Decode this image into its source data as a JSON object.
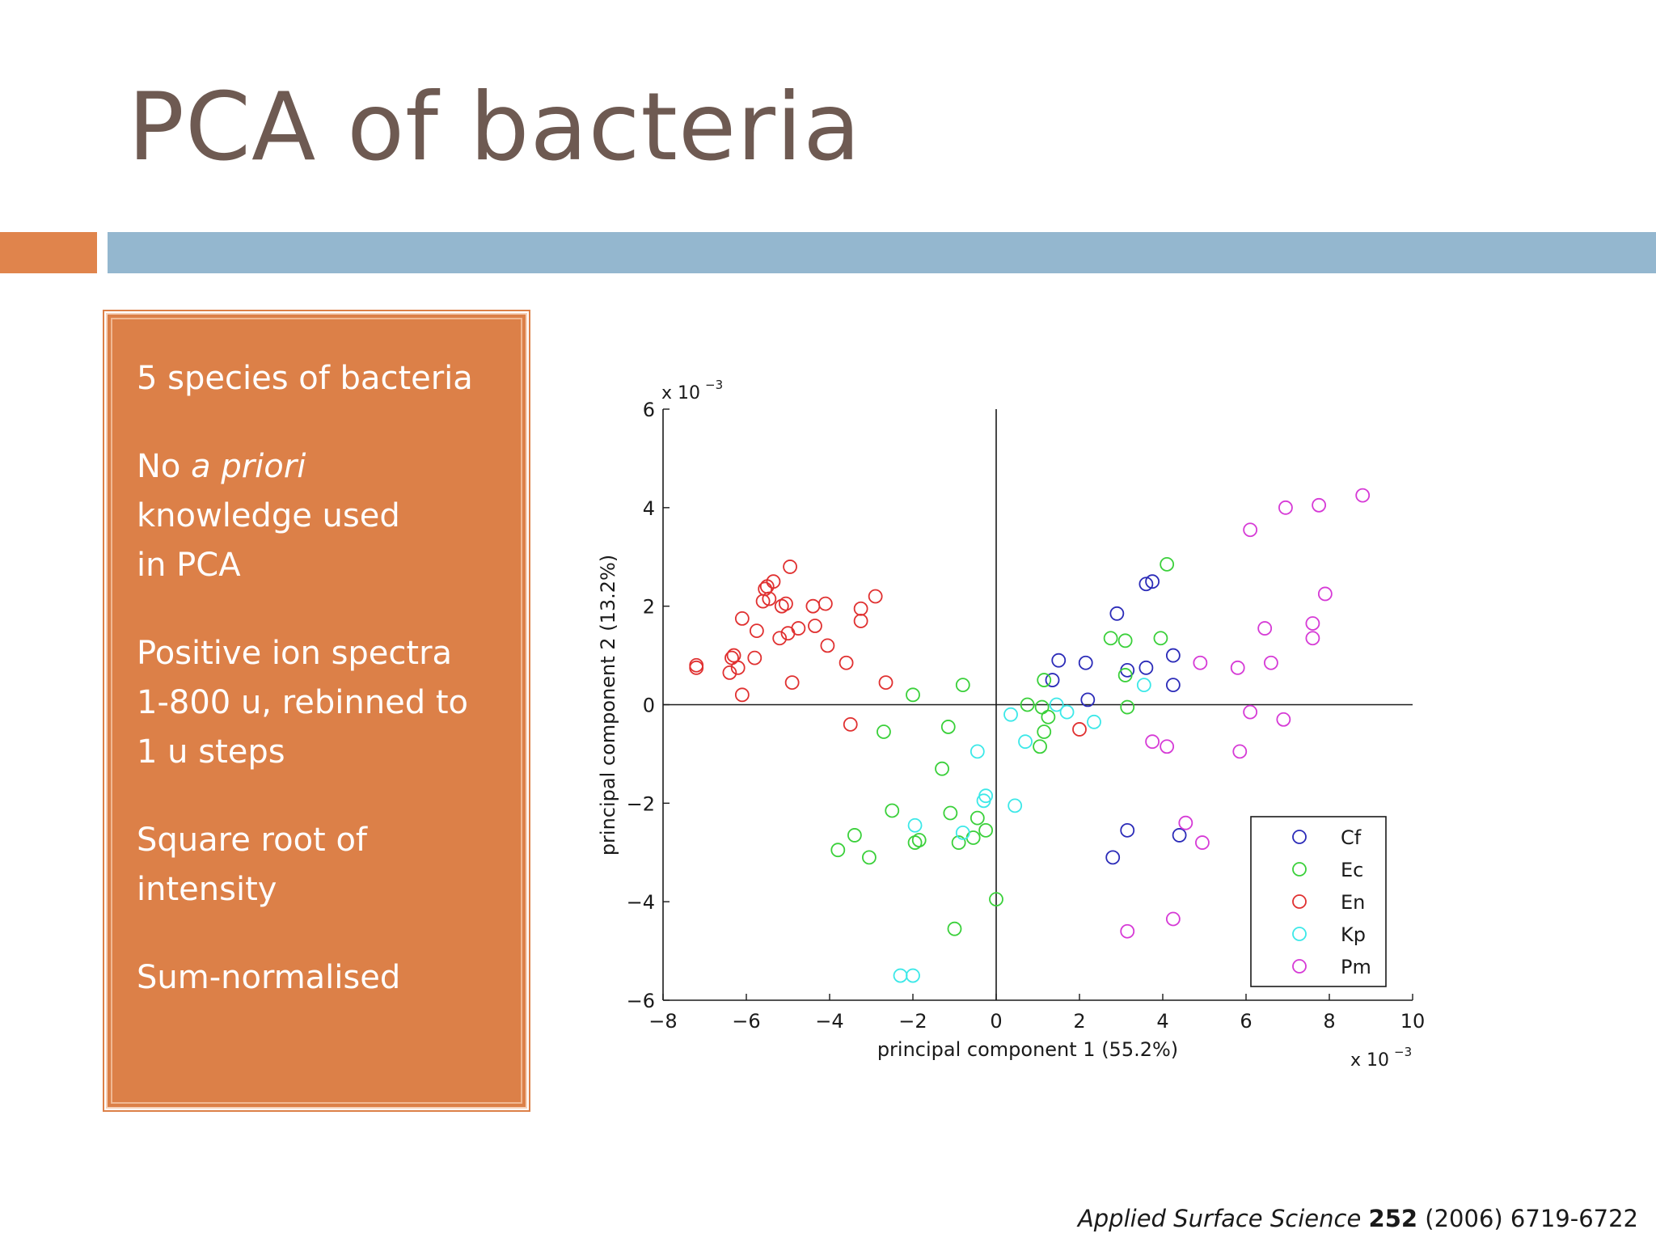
{
  "slide": {
    "title": "PCA of bacteria",
    "bullets": {
      "b1": "5 species of bacteria",
      "b2_pre": "No ",
      "b2_italic": "a priori",
      "b2_l2": "knowledge used",
      "b2_l3": "in PCA",
      "b3_l1": "Positive ion spectra",
      "b3_l2": "1-800 u, rebinned to",
      "b3_l3": "1 u steps",
      "b4_l1": "Square root of",
      "b4_l2": "intensity",
      "b5": "Sum-normalised"
    },
    "citation": {
      "journal": "Applied Surface Science",
      "volume": "252",
      "rest": "(2006) 6719-6722"
    }
  },
  "colors": {
    "orange": "#dc8048",
    "blue_bar": "#94b7cf",
    "title": "#6e5a52"
  },
  "chart_data": {
    "type": "scatter",
    "xlabel": "principal component 1 (55.2%)",
    "ylabel": "principal component 2 (13.2%)",
    "x_multiplier": "x 10",
    "y_multiplier": "x 10",
    "multiplier_exponent": "−3",
    "xlim": [
      -8,
      10
    ],
    "ylim": [
      -6,
      6
    ],
    "xticks": [
      -8,
      -6,
      -4,
      -2,
      0,
      2,
      4,
      6,
      8,
      10
    ],
    "yticks": [
      -6,
      -4,
      -2,
      0,
      2,
      4,
      6
    ],
    "xtick_labels": [
      "−8",
      "−6",
      "−4",
      "−2",
      "0",
      "2",
      "4",
      "6",
      "8",
      "10"
    ],
    "ytick_labels": [
      "−6",
      "−4",
      "−2",
      "0",
      "2",
      "4",
      "6"
    ],
    "grid": false,
    "legend_position": "bottom-right",
    "series": [
      {
        "name": "Cf",
        "color": "#2b2bb8",
        "points": [
          [
            1.5,
            0.9
          ],
          [
            2.15,
            0.85
          ],
          [
            1.35,
            0.5
          ],
          [
            2.2,
            0.1
          ],
          [
            2.9,
            1.85
          ],
          [
            3.6,
            2.45
          ],
          [
            3.75,
            2.5
          ],
          [
            3.15,
            0.7
          ],
          [
            3.6,
            0.75
          ],
          [
            4.25,
            1.0
          ],
          [
            4.25,
            0.4
          ],
          [
            3.15,
            -2.55
          ],
          [
            2.8,
            -3.1
          ],
          [
            4.4,
            -2.65
          ]
        ]
      },
      {
        "name": "Ec",
        "color": "#3ad03a",
        "points": [
          [
            4.1,
            2.85
          ],
          [
            2.75,
            1.35
          ],
          [
            3.1,
            1.3
          ],
          [
            3.95,
            1.35
          ],
          [
            3.1,
            0.6
          ],
          [
            3.15,
            -0.05
          ],
          [
            1.15,
            0.5
          ],
          [
            0.75,
            0.0
          ],
          [
            1.1,
            -0.05
          ],
          [
            1.25,
            -0.25
          ],
          [
            1.15,
            -0.55
          ],
          [
            1.05,
            -0.85
          ],
          [
            -0.8,
            0.4
          ],
          [
            -2.0,
            0.2
          ],
          [
            -1.15,
            -0.45
          ],
          [
            -2.7,
            -0.55
          ],
          [
            -1.3,
            -1.3
          ],
          [
            -2.5,
            -2.15
          ],
          [
            -1.1,
            -2.2
          ],
          [
            -0.45,
            -2.3
          ],
          [
            -3.4,
            -2.65
          ],
          [
            -3.8,
            -2.95
          ],
          [
            -3.05,
            -3.1
          ],
          [
            -1.95,
            -2.8
          ],
          [
            -1.85,
            -2.75
          ],
          [
            -0.9,
            -2.8
          ],
          [
            -0.55,
            -2.7
          ],
          [
            -0.25,
            -2.55
          ],
          [
            0.0,
            -3.95
          ],
          [
            -1.0,
            -4.55
          ]
        ]
      },
      {
        "name": "En",
        "color": "#e03030",
        "points": [
          [
            -4.95,
            2.8
          ],
          [
            -5.35,
            2.5
          ],
          [
            -5.5,
            2.4
          ],
          [
            -5.55,
            2.35
          ],
          [
            -5.6,
            2.1
          ],
          [
            -5.45,
            2.15
          ],
          [
            -5.15,
            2.0
          ],
          [
            -5.05,
            2.05
          ],
          [
            -4.4,
            2.0
          ],
          [
            -4.1,
            2.05
          ],
          [
            -3.25,
            1.95
          ],
          [
            -2.9,
            2.2
          ],
          [
            -3.25,
            1.7
          ],
          [
            -6.1,
            1.75
          ],
          [
            -5.75,
            1.5
          ],
          [
            -5.2,
            1.35
          ],
          [
            -5.0,
            1.45
          ],
          [
            -4.75,
            1.55
          ],
          [
            -4.35,
            1.6
          ],
          [
            -4.05,
            1.2
          ],
          [
            -3.6,
            0.85
          ],
          [
            -6.35,
            0.95
          ],
          [
            -6.3,
            1.0
          ],
          [
            -6.2,
            0.75
          ],
          [
            -6.4,
            0.65
          ],
          [
            -5.8,
            0.95
          ],
          [
            -7.2,
            0.8
          ],
          [
            -7.2,
            0.75
          ],
          [
            -6.1,
            0.2
          ],
          [
            -4.9,
            0.45
          ],
          [
            -2.65,
            0.45
          ],
          [
            -3.5,
            -0.4
          ],
          [
            2.0,
            -0.5
          ]
        ]
      },
      {
        "name": "Kp",
        "color": "#3ce8e8",
        "points": [
          [
            0.35,
            -0.2
          ],
          [
            0.7,
            -0.75
          ],
          [
            1.45,
            0.0
          ],
          [
            1.7,
            -0.15
          ],
          [
            2.35,
            -0.35
          ],
          [
            3.55,
            0.4
          ],
          [
            -0.45,
            -0.95
          ],
          [
            -0.25,
            -1.85
          ],
          [
            -0.3,
            -1.95
          ],
          [
            0.45,
            -2.05
          ],
          [
            -1.95,
            -2.45
          ],
          [
            -0.8,
            -2.6
          ],
          [
            -2.3,
            -5.5
          ],
          [
            -2.0,
            -5.5
          ]
        ]
      },
      {
        "name": "Pm",
        "color": "#d63ad6",
        "points": [
          [
            8.8,
            4.25
          ],
          [
            7.75,
            4.05
          ],
          [
            6.95,
            4.0
          ],
          [
            6.1,
            3.55
          ],
          [
            7.9,
            2.25
          ],
          [
            7.6,
            1.65
          ],
          [
            6.45,
            1.55
          ],
          [
            7.6,
            1.35
          ],
          [
            6.6,
            0.85
          ],
          [
            4.9,
            0.85
          ],
          [
            5.8,
            0.75
          ],
          [
            6.1,
            -0.15
          ],
          [
            6.9,
            -0.3
          ],
          [
            3.75,
            -0.75
          ],
          [
            4.1,
            -0.85
          ],
          [
            5.85,
            -0.95
          ],
          [
            4.55,
            -2.4
          ],
          [
            4.95,
            -2.8
          ],
          [
            4.25,
            -4.35
          ],
          [
            3.15,
            -4.6
          ]
        ]
      }
    ]
  }
}
